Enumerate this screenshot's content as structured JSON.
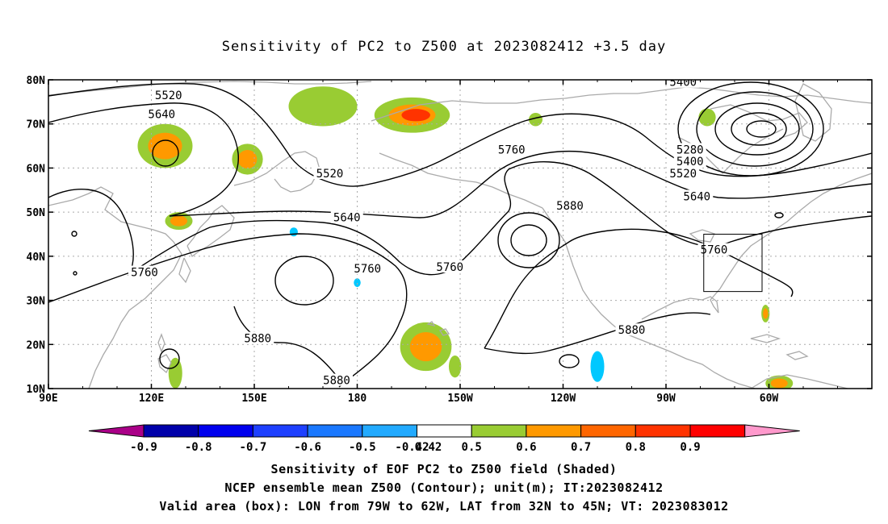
{
  "title": "Sensitivity of PC2 to Z500 at 2023082412 +3.5 day",
  "map": {
    "lon_labels": [
      "90E",
      "120E",
      "150E",
      "180",
      "150W",
      "120W",
      "90W",
      "60W"
    ],
    "lat_labels": [
      "80N",
      "70N",
      "60N",
      "50N",
      "40N",
      "30N",
      "20N",
      "10N"
    ],
    "contour_labels": [
      {
        "text": "5520",
        "lon": 125,
        "lat": 76.5
      },
      {
        "text": "5640",
        "lon": 123,
        "lat": 72.2
      },
      {
        "text": "5400",
        "lon": 275,
        "lat": 79.5
      },
      {
        "text": "5280",
        "lon": 277,
        "lat": 64.2
      },
      {
        "text": "5400",
        "lon": 277,
        "lat": 61.5
      },
      {
        "text": "5520",
        "lon": 275,
        "lat": 58.8
      },
      {
        "text": "5640",
        "lon": 279,
        "lat": 53.6
      },
      {
        "text": "5760",
        "lon": 225,
        "lat": 64.2
      },
      {
        "text": "5520",
        "lon": 172,
        "lat": 58.8
      },
      {
        "text": "5640",
        "lon": 177,
        "lat": 48.8
      },
      {
        "text": "5880",
        "lon": 242,
        "lat": 51.5
      },
      {
        "text": "5760",
        "lon": 284,
        "lat": 41.5
      },
      {
        "text": "5760",
        "lon": 207,
        "lat": 37.6
      },
      {
        "text": "5760",
        "lon": 183,
        "lat": 37.2
      },
      {
        "text": "5760",
        "lon": 118,
        "lat": 36.4
      },
      {
        "text": "5880",
        "lon": 260,
        "lat": 23.3
      },
      {
        "text": "5880",
        "lon": 151,
        "lat": 21.4
      },
      {
        "text": "5880",
        "lon": 174,
        "lat": 11.9
      }
    ],
    "valid_box": {
      "lon_min": 281,
      "lon_max": 298,
      "lat_min": 32,
      "lat_max": 45
    },
    "shaded_patches": [
      {
        "lon": 124,
        "lat": 65,
        "rx": 8,
        "ry": 5,
        "level": 0.6
      },
      {
        "lon": 148,
        "lat": 62,
        "rx": 4.5,
        "ry": 3.5,
        "level": 0.6
      },
      {
        "lon": 170,
        "lat": 74,
        "rx": 10,
        "ry": 4.5,
        "level": 0.5
      },
      {
        "lon": 196,
        "lat": 72,
        "rx": 11,
        "ry": 4,
        "level": 0.7
      },
      {
        "lon": 128,
        "lat": 48,
        "rx": 4,
        "ry": 2,
        "level": 0.6
      },
      {
        "lon": 200,
        "lat": 19.5,
        "rx": 7.5,
        "ry": 5.5,
        "level": 0.6
      },
      {
        "lon": 282,
        "lat": 71.5,
        "rx": 2.5,
        "ry": 2,
        "level": 0.5
      },
      {
        "lon": 232,
        "lat": 71,
        "rx": 2,
        "ry": 1.5,
        "level": 0.5
      },
      {
        "lon": 127,
        "lat": 13.5,
        "rx": 2,
        "ry": 3.5,
        "level": 0.5
      },
      {
        "lon": 299,
        "lat": 27,
        "rx": 1.2,
        "ry": 2,
        "level": 0.6
      },
      {
        "lon": 208.5,
        "lat": 15,
        "rx": 1.8,
        "ry": 2.5,
        "level": 0.5
      },
      {
        "lon": 303,
        "lat": 11.2,
        "rx": 4,
        "ry": 1.8,
        "level": 0.6
      },
      {
        "lon": 161.5,
        "lat": 45.5,
        "rx": 1.2,
        "ry": 1,
        "level": -0.42
      },
      {
        "lon": 180,
        "lat": 34,
        "rx": 1,
        "ry": 1,
        "level": -0.42
      },
      {
        "lon": 250,
        "lat": 15,
        "rx": 2,
        "ry": 3.5,
        "level": -0.42
      }
    ]
  },
  "colorbar": {
    "labels": [
      "-0.9",
      "-0.8",
      "-0.7",
      "-0.6",
      "-0.5",
      "-0.42",
      "0.42",
      "0.5",
      "0.6",
      "0.7",
      "0.8",
      "0.9"
    ],
    "colors": [
      "#aa0088",
      "#0000aa",
      "#0000ee",
      "#1e40ff",
      "#1a78ff",
      "#22aaff",
      "#00c8ff",
      "#ffffff",
      "#99cc33",
      "#ff9900",
      "#ff6600",
      "#ff3300",
      "#ff0000",
      "#ff99cc"
    ]
  },
  "captions": {
    "line1": "Sensitivity of EOF PC2 to Z500 field (Shaded)",
    "line2": "NCEP ensemble mean Z500 (Contour); unit(m); IT:2023082412",
    "line3": "Valid area (box): LON from 79W to 62W, LAT from 32N to 45N; VT: 2023083012"
  }
}
